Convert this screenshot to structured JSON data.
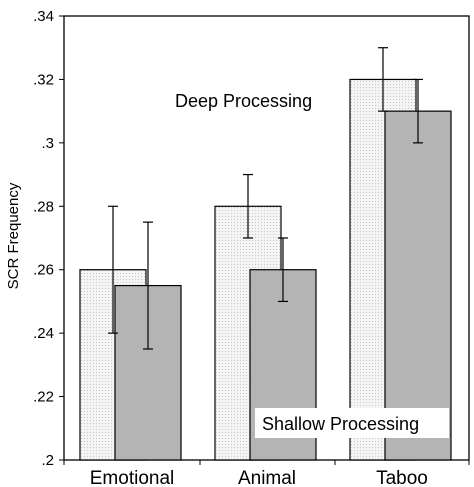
{
  "chart_data": {
    "type": "bar",
    "title": "",
    "xlabel": "",
    "ylabel": "SCR Frequency",
    "ylim": [
      0.2,
      0.34
    ],
    "yticks": [
      ".2",
      ".22",
      ".24",
      ".26",
      ".28",
      ".3",
      ".32",
      ".34"
    ],
    "categories": [
      "Emotional",
      "Animal",
      "Taboo"
    ],
    "series": [
      {
        "name": "Deep Processing",
        "values": [
          0.26,
          0.28,
          0.32
        ],
        "error": [
          0.02,
          0.01,
          0.01
        ],
        "color": "#f2f2f2"
      },
      {
        "name": "Shallow Processing",
        "values": [
          0.255,
          0.26,
          0.31
        ],
        "error": [
          0.02,
          0.01,
          0.01
        ],
        "color": "#b4b4b4"
      }
    ],
    "grid": false,
    "legend": "inline labels"
  }
}
